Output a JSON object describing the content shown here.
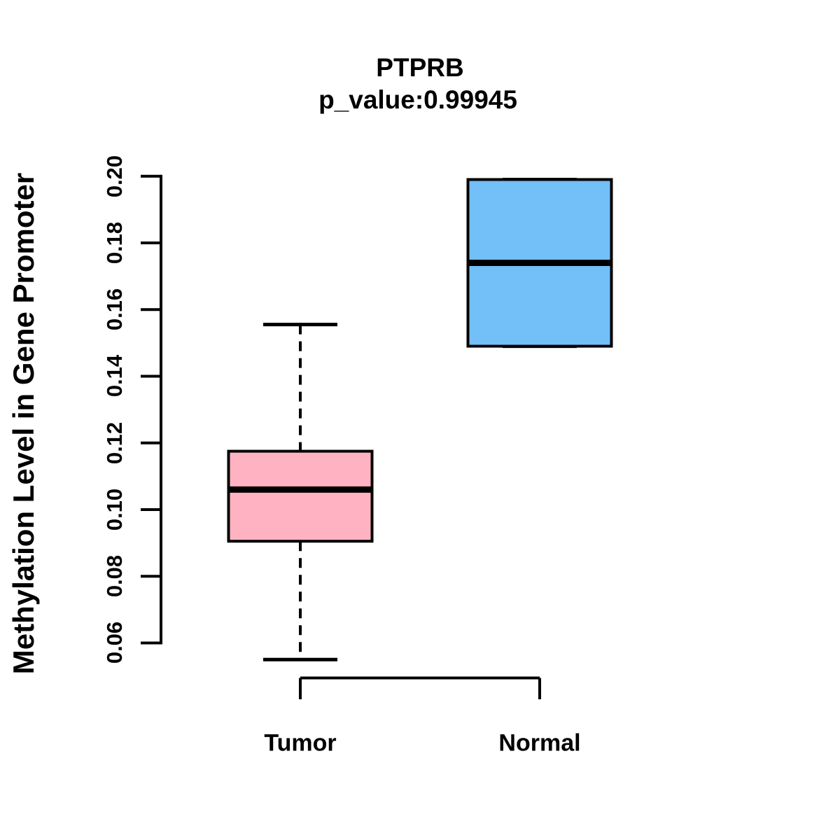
{
  "chart_data": {
    "type": "boxplot",
    "title": "PTPRB",
    "subtitle": "p_value:0.99945",
    "ylabel": "Methylation Level in Gene Promoter",
    "xlabel": "",
    "categories": [
      "Tumor",
      "Normal"
    ],
    "yticks": [
      "0.06",
      "0.08",
      "0.10",
      "0.12",
      "0.14",
      "0.16",
      "0.18",
      "0.20"
    ],
    "ylim": [
      0.06,
      0.2
    ],
    "grid": "off",
    "legend": "none",
    "series": [
      {
        "name": "Tumor",
        "fill": "#FFB3C2",
        "whisker_low": 0.055,
        "q1": 0.0905,
        "median": 0.106,
        "q3": 0.1175,
        "whisker_high": 0.1555
      },
      {
        "name": "Normal",
        "fill": "#73BFF7",
        "whisker_low": 0.149,
        "q1": 0.149,
        "median": 0.174,
        "q3": 0.199,
        "whisker_high": 0.199
      }
    ],
    "colors": {
      "box_border": "#000000",
      "median": "#000000",
      "axis": "#000000",
      "text": "#000000",
      "background": "#FFFFFF"
    }
  }
}
